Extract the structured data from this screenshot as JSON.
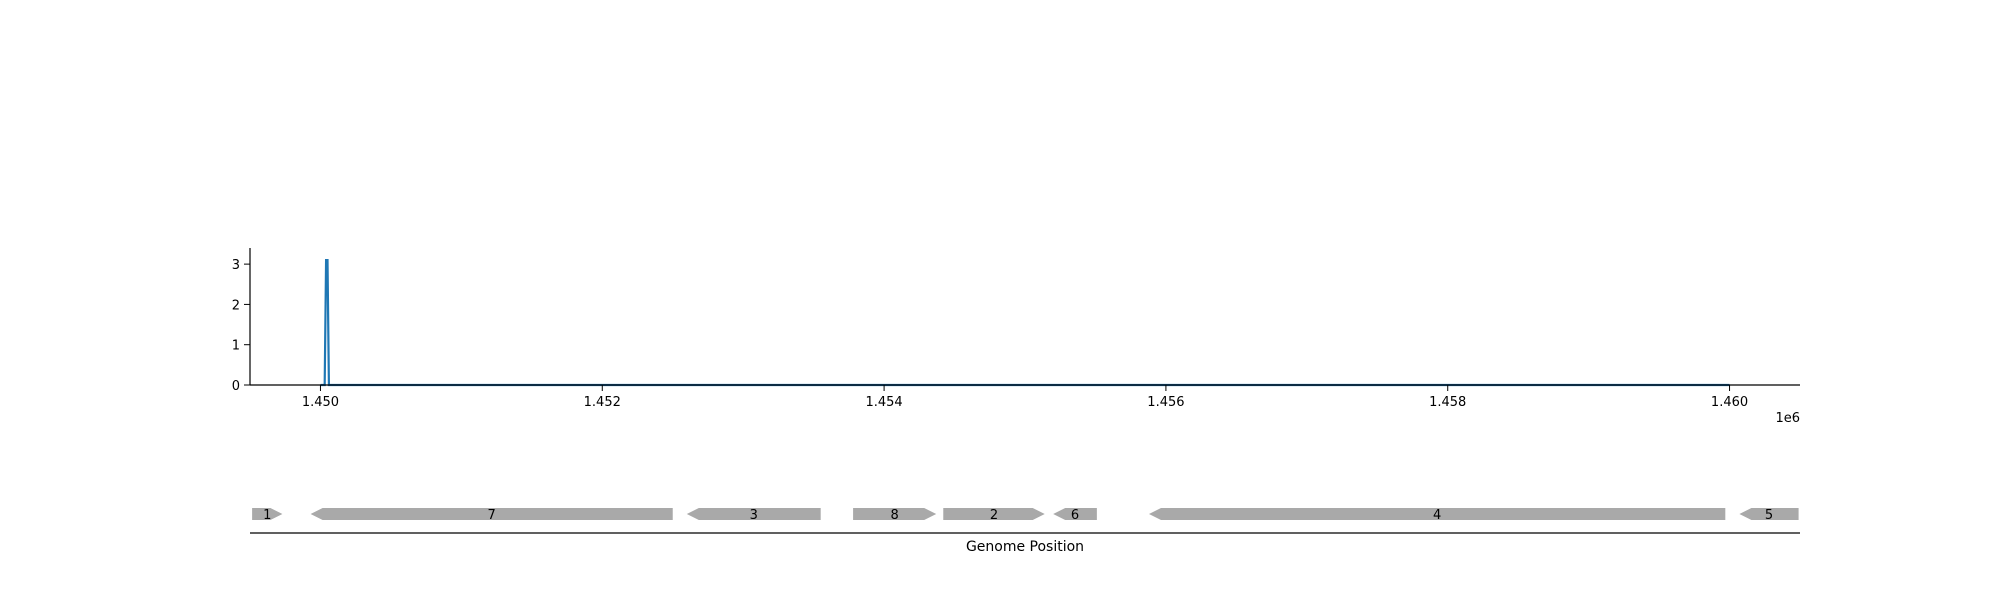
{
  "chart_data": {
    "type": "line",
    "x_offset_label": "1e6",
    "xlim": [
      1449.5,
      1460.5
    ],
    "ylim": [
      0,
      3.4
    ],
    "x_ticks": [
      {
        "value": 1450,
        "label": "1.450"
      },
      {
        "value": 1452,
        "label": "1.452"
      },
      {
        "value": 1454,
        "label": "1.454"
      },
      {
        "value": 1456,
        "label": "1.456"
      },
      {
        "value": 1458,
        "label": "1.458"
      },
      {
        "value": 1460,
        "label": "1.460"
      }
    ],
    "y_ticks": [
      {
        "value": 0,
        "label": "0"
      },
      {
        "value": 1,
        "label": "1"
      },
      {
        "value": 2,
        "label": "2"
      },
      {
        "value": 3,
        "label": "3"
      }
    ],
    "series": [
      {
        "color": "#1f77b4",
        "x": [
          1450,
          1450.03,
          1450.04,
          1450.05,
          1450.06,
          1460
        ],
        "y": [
          0,
          0,
          3.1,
          3.1,
          0,
          0
        ]
      }
    ]
  },
  "gene_track": {
    "xlabel": "Genome Position",
    "color": "#a9a9a9",
    "genes": [
      {
        "label": "1",
        "start": 1449.515,
        "end": 1449.73,
        "strand": "+"
      },
      {
        "label": "7",
        "start": 1449.93,
        "end": 1452.5,
        "strand": "-"
      },
      {
        "label": "3",
        "start": 1452.6,
        "end": 1453.55,
        "strand": "-"
      },
      {
        "label": "8",
        "start": 1453.78,
        "end": 1454.37,
        "strand": "+"
      },
      {
        "label": "2",
        "start": 1454.42,
        "end": 1455.14,
        "strand": "+"
      },
      {
        "label": "6",
        "start": 1455.2,
        "end": 1455.51,
        "strand": "-"
      },
      {
        "label": "4",
        "start": 1455.88,
        "end": 1459.97,
        "strand": "-"
      },
      {
        "label": "5",
        "start": 1460.07,
        "end": 1460.49,
        "strand": "-"
      }
    ]
  }
}
